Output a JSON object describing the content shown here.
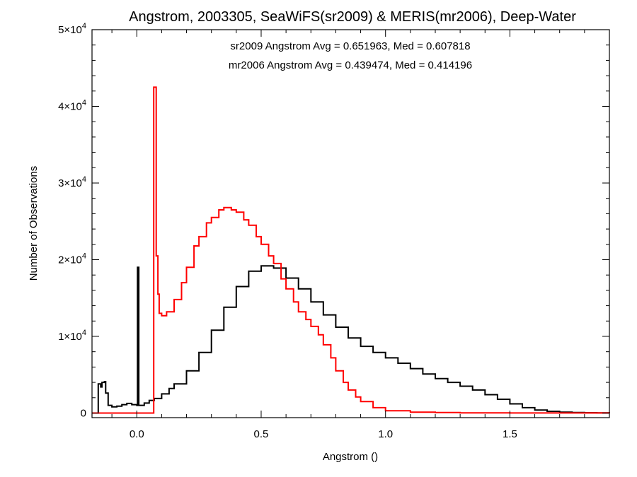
{
  "chart_data": {
    "type": "line",
    "title": "Angstrom, 2003305, SeaWiFS(sr2009) & MERIS(mr2006), Deep-Water",
    "xlabel": "Angstrom ()",
    "ylabel": "Number of Observations",
    "xlim": [
      -0.18,
      1.9
    ],
    "ylim": [
      -600,
      50000
    ],
    "x_ticks": [
      {
        "value": 0.0,
        "label": "0.0"
      },
      {
        "value": 0.5,
        "label": "0.5"
      },
      {
        "value": 1.0,
        "label": "1.0"
      },
      {
        "value": 1.5,
        "label": "1.5"
      }
    ],
    "y_ticks": [
      {
        "value": 0,
        "label": "0",
        "exp": ""
      },
      {
        "value": 10000,
        "label": "1×10",
        "exp": "4"
      },
      {
        "value": 20000,
        "label": "2×10",
        "exp": "4"
      },
      {
        "value": 30000,
        "label": "3×10",
        "exp": "4"
      },
      {
        "value": 40000,
        "label": "4×10",
        "exp": "4"
      },
      {
        "value": 50000,
        "label": "5×10",
        "exp": "4"
      }
    ],
    "annotations": [
      {
        "text": "sr2009 Angstrom Avg = 0.651963, Med = 0.607818",
        "color": "#000000"
      },
      {
        "text": "mr2006 Angstrom Avg = 0.439474, Med = 0.414196",
        "color": "#ff0000"
      }
    ],
    "series": [
      {
        "color": "#000000",
        "step": true,
        "points": [
          [
            -0.18,
            0
          ],
          [
            -0.16,
            0
          ],
          [
            -0.155,
            3800
          ],
          [
            -0.145,
            3400
          ],
          [
            -0.14,
            4000
          ],
          [
            -0.13,
            4100
          ],
          [
            -0.125,
            2600
          ],
          [
            -0.115,
            1000
          ],
          [
            -0.1,
            800
          ],
          [
            -0.08,
            900
          ],
          [
            -0.06,
            1100
          ],
          [
            -0.04,
            1250
          ],
          [
            -0.02,
            1100
          ],
          [
            0.0,
            1000
          ],
          [
            0.003,
            19000
          ],
          [
            0.008,
            1000
          ],
          [
            0.03,
            1300
          ],
          [
            0.05,
            1650
          ],
          [
            0.07,
            1900
          ],
          [
            0.1,
            2500
          ],
          [
            0.13,
            3200
          ],
          [
            0.15,
            3800
          ],
          [
            0.2,
            5500
          ],
          [
            0.25,
            7900
          ],
          [
            0.3,
            10800
          ],
          [
            0.35,
            13800
          ],
          [
            0.4,
            16500
          ],
          [
            0.45,
            18500
          ],
          [
            0.5,
            19200
          ],
          [
            0.55,
            18900
          ],
          [
            0.6,
            17600
          ],
          [
            0.65,
            16200
          ],
          [
            0.7,
            14500
          ],
          [
            0.75,
            12800
          ],
          [
            0.8,
            11200
          ],
          [
            0.85,
            9800
          ],
          [
            0.9,
            8700
          ],
          [
            0.95,
            7900
          ],
          [
            1.0,
            7200
          ],
          [
            1.05,
            6500
          ],
          [
            1.1,
            5800
          ],
          [
            1.15,
            5100
          ],
          [
            1.2,
            4500
          ],
          [
            1.25,
            4000
          ],
          [
            1.3,
            3500
          ],
          [
            1.35,
            3000
          ],
          [
            1.4,
            2400
          ],
          [
            1.45,
            1800
          ],
          [
            1.5,
            1200
          ],
          [
            1.55,
            700
          ],
          [
            1.6,
            400
          ],
          [
            1.65,
            220
          ],
          [
            1.7,
            120
          ],
          [
            1.75,
            70
          ],
          [
            1.8,
            40
          ],
          [
            1.85,
            20
          ],
          [
            1.9,
            10
          ]
        ]
      },
      {
        "color": "#ff0000",
        "step": true,
        "points": [
          [
            -0.18,
            0
          ],
          [
            0.065,
            0
          ],
          [
            0.068,
            42500
          ],
          [
            0.078,
            20500
          ],
          [
            0.085,
            15500
          ],
          [
            0.09,
            13000
          ],
          [
            0.1,
            12700
          ],
          [
            0.12,
            13200
          ],
          [
            0.15,
            14800
          ],
          [
            0.18,
            17000
          ],
          [
            0.2,
            19000
          ],
          [
            0.23,
            21800
          ],
          [
            0.25,
            23000
          ],
          [
            0.28,
            24800
          ],
          [
            0.3,
            25500
          ],
          [
            0.33,
            26500
          ],
          [
            0.35,
            26800
          ],
          [
            0.38,
            26500
          ],
          [
            0.4,
            26200
          ],
          [
            0.43,
            25200
          ],
          [
            0.45,
            24500
          ],
          [
            0.48,
            23000
          ],
          [
            0.5,
            22000
          ],
          [
            0.53,
            20500
          ],
          [
            0.55,
            19500
          ],
          [
            0.58,
            17500
          ],
          [
            0.6,
            16200
          ],
          [
            0.63,
            14500
          ],
          [
            0.65,
            13200
          ],
          [
            0.68,
            12200
          ],
          [
            0.7,
            11300
          ],
          [
            0.73,
            10200
          ],
          [
            0.75,
            8900
          ],
          [
            0.78,
            7200
          ],
          [
            0.8,
            5500
          ],
          [
            0.83,
            4000
          ],
          [
            0.85,
            3000
          ],
          [
            0.88,
            2100
          ],
          [
            0.9,
            1500
          ],
          [
            0.95,
            700
          ],
          [
            1.0,
            300
          ],
          [
            1.1,
            120
          ],
          [
            1.2,
            60
          ],
          [
            1.3,
            30
          ],
          [
            1.5,
            10
          ],
          [
            1.7,
            5
          ],
          [
            1.9,
            0
          ]
        ]
      }
    ],
    "grid": false,
    "legend": "none"
  }
}
